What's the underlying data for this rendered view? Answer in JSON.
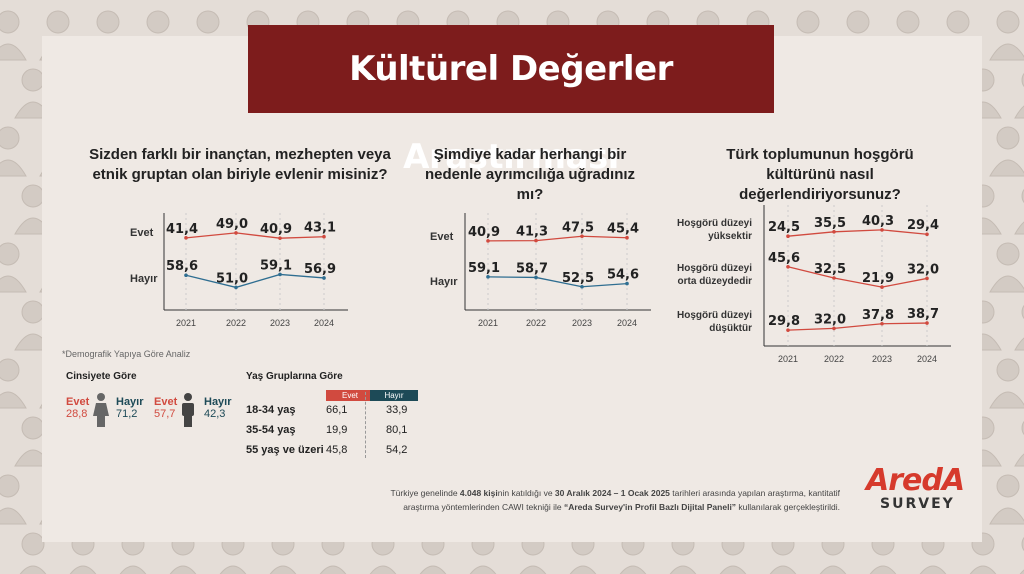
{
  "title": "Kültürel Değerler Araştırması",
  "colors": {
    "red": "#d14a3f",
    "blue": "#2f6e91",
    "dark": "#7d1c1c",
    "teal": "#1d4a57"
  },
  "chart_data": [
    {
      "type": "line",
      "title": "Sizden farklı bir inançtan, mezhepten veya etnik gruptan olan biriyle evlenir misiniz?",
      "x": [
        "2021",
        "2022",
        "2023",
        "2024"
      ],
      "series": [
        {
          "name": "Evet",
          "values": [
            41.4,
            49.0,
            40.9,
            43.1
          ],
          "labels": [
            "41,4",
            "49,0",
            "40,9",
            "43,1"
          ]
        },
        {
          "name": "Hayır",
          "values": [
            58.6,
            51.0,
            59.1,
            56.9
          ],
          "labels": [
            "58,6",
            "51,0",
            "59,1",
            "56,9"
          ]
        }
      ]
    },
    {
      "type": "line",
      "title": "Şimdiye kadar herhangi bir nedenle ayrımcılığa uğradınız mı?",
      "x": [
        "2021",
        "2022",
        "2023",
        "2024"
      ],
      "series": [
        {
          "name": "Evet",
          "values": [
            40.9,
            41.3,
            47.5,
            45.4
          ],
          "labels": [
            "40,9",
            "41,3",
            "47,5",
            "45,4"
          ]
        },
        {
          "name": "Hayır",
          "values": [
            59.1,
            58.7,
            52.5,
            54.6
          ],
          "labels": [
            "59,1",
            "58,7",
            "52,5",
            "54,6"
          ]
        }
      ]
    },
    {
      "type": "line",
      "title": "Türk toplumunun hoşgörü kültürünü nasıl değerlendiriyorsunuz?",
      "x": [
        "2021",
        "2022",
        "2023",
        "2024"
      ],
      "series": [
        {
          "name": "Hoşgörü düzeyi yüksektir",
          "values": [
            24.5,
            35.5,
            40.3,
            29.4
          ],
          "labels": [
            "24,5",
            "35,5",
            "40,3",
            "29,4"
          ]
        },
        {
          "name": "Hoşgörü düzeyi orta düzeydedir",
          "values": [
            45.6,
            32.5,
            21.9,
            32.0
          ],
          "labels": [
            "45,6",
            "32,5",
            "21,9",
            "32,0"
          ]
        },
        {
          "name": "Hoşgörü düzeyi düşüktür",
          "values": [
            29.8,
            32.0,
            37.8,
            38.7
          ],
          "labels": [
            "29,8",
            "32,0",
            "37,8",
            "38,7"
          ]
        }
      ]
    }
  ],
  "demographics": {
    "note": "*Demografik Yapıya Göre Analiz",
    "gender": {
      "title": "Cinsiyete Göre",
      "female": {
        "evet_label": "Evet",
        "evet": "28,8",
        "hayir_label": "Hayır",
        "hayir": "71,2"
      },
      "male": {
        "evet_label": "Evet",
        "evet": "57,7",
        "hayir_label": "Hayır",
        "hayir": "42,3"
      }
    },
    "age": {
      "title": "Yaş Gruplarına Göre",
      "col_evet": "Evet",
      "col_hayir": "Hayır",
      "rows": [
        {
          "group": "18-34 yaş",
          "evet": "66,1",
          "hayir": "33,9"
        },
        {
          "group": "35-54 yaş",
          "evet": "19,9",
          "hayir": "80,1"
        },
        {
          "group": "55 yaş ve üzeri",
          "evet": "45,8",
          "hayir": "54,2"
        }
      ]
    }
  },
  "footer": {
    "line1_a": "Türkiye genelinde ",
    "line1_b": "4.048 kişi",
    "line1_c": "nin katıldığı ve ",
    "line1_d": "30 Aralık 2024 – 1 Ocak 2025",
    "line1_e": " tarihleri arasında yapılan araştırma, kantitatif",
    "line2_a": "araştırma yöntemlerinden CAWI tekniği ile ",
    "line2_b": "“Areda  Survey'in Profil Bazlı Dijital Paneli”",
    "line2_c": " kullanılarak gerçekleştirildi."
  },
  "logo": {
    "top": "AredA",
    "bottom": "SURVEY"
  }
}
